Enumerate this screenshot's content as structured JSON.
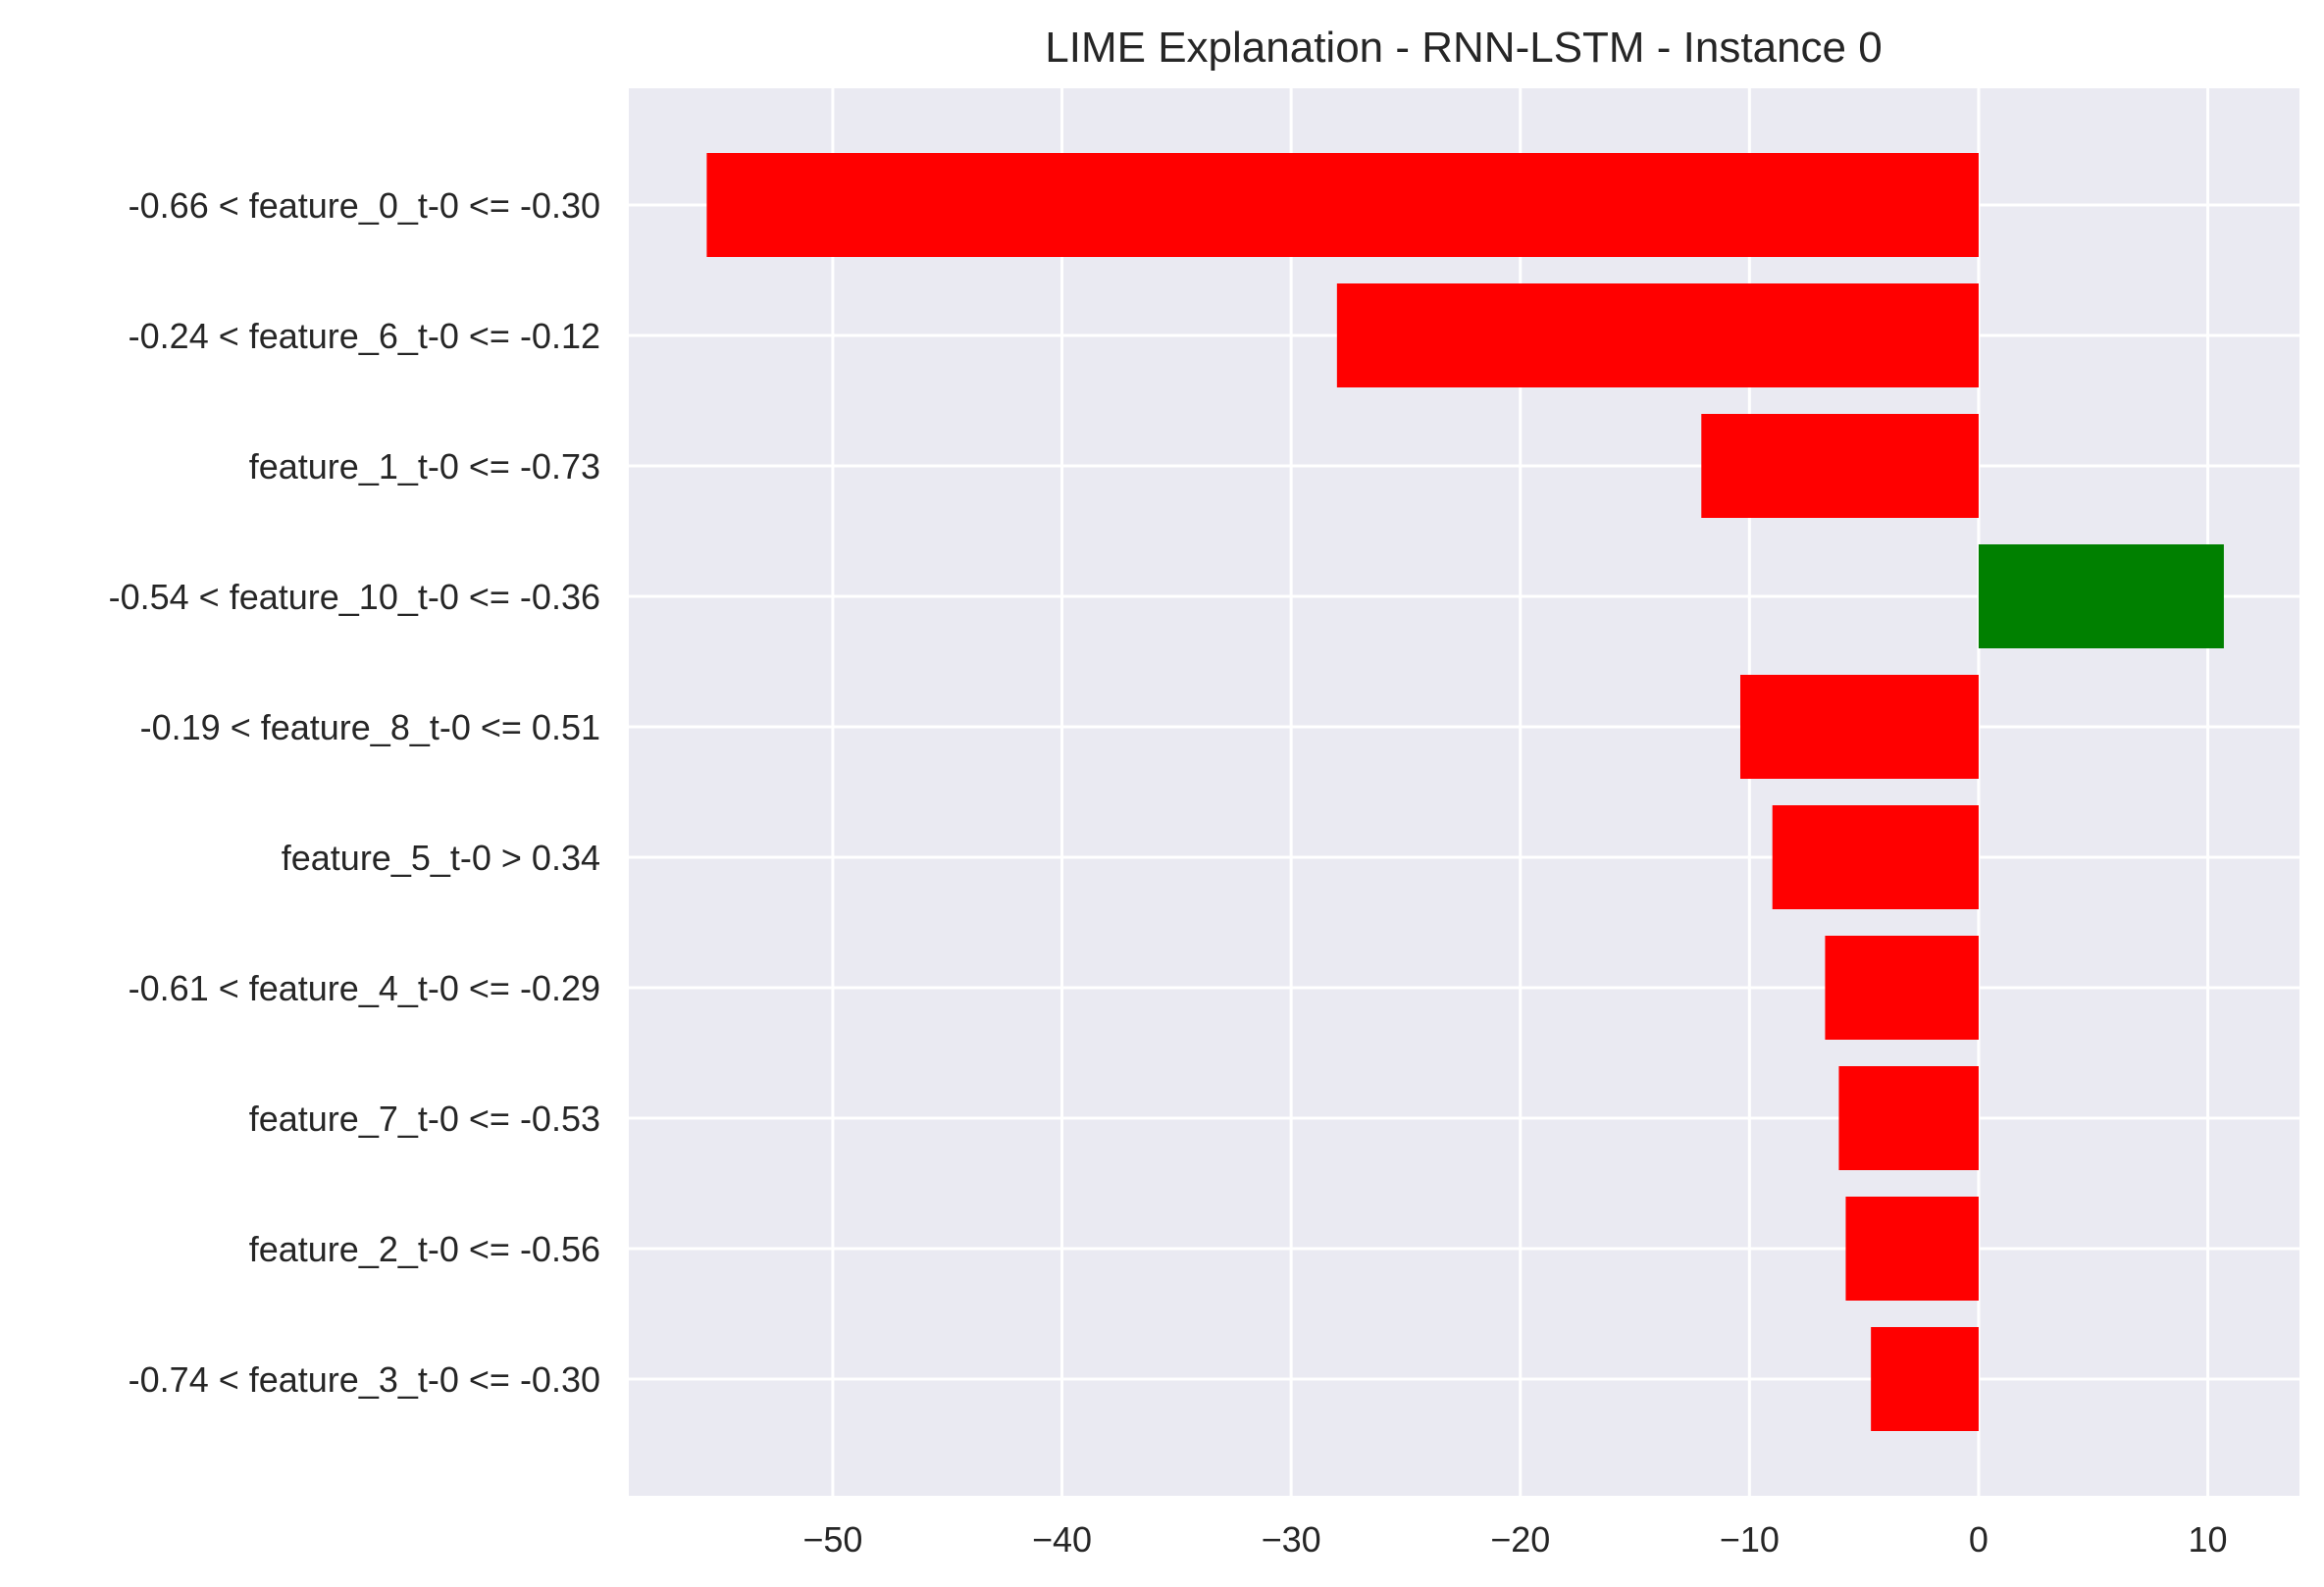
{
  "chart_data": {
    "type": "bar",
    "orientation": "horizontal",
    "title": "LIME Explanation - RNN-LSTM - Instance 0",
    "xlabel": "",
    "ylabel": "",
    "categories": [
      "-0.66 < feature_0_t-0 <= -0.30",
      "-0.24 < feature_6_t-0 <= -0.12",
      "feature_1_t-0 <= -0.73",
      "-0.54 < feature_10_t-0 <= -0.36",
      "-0.19 < feature_8_t-0 <= 0.51",
      "feature_5_t-0 > 0.34",
      "-0.61 < feature_4_t-0 <= -0.29",
      "feature_7_t-0 <= -0.53",
      "feature_2_t-0 <= -0.56",
      "-0.74 < feature_3_t-0 <= -0.30"
    ],
    "values": [
      -55.5,
      -28.0,
      -12.1,
      10.7,
      -10.4,
      -9.0,
      -6.7,
      -6.1,
      -5.8,
      -4.7
    ],
    "xlim": [
      -58.9,
      14.0
    ],
    "xticks": [
      -50,
      -40,
      -30,
      -20,
      -10,
      0,
      10
    ],
    "xtick_labels": [
      "−50",
      "−40",
      "−30",
      "−20",
      "−10",
      "0",
      "10"
    ],
    "positive_color": "#008000",
    "negative_color": "#ff0000",
    "background_color": "#eaeaf2",
    "grid_color": "#ffffff",
    "grid": true
  }
}
